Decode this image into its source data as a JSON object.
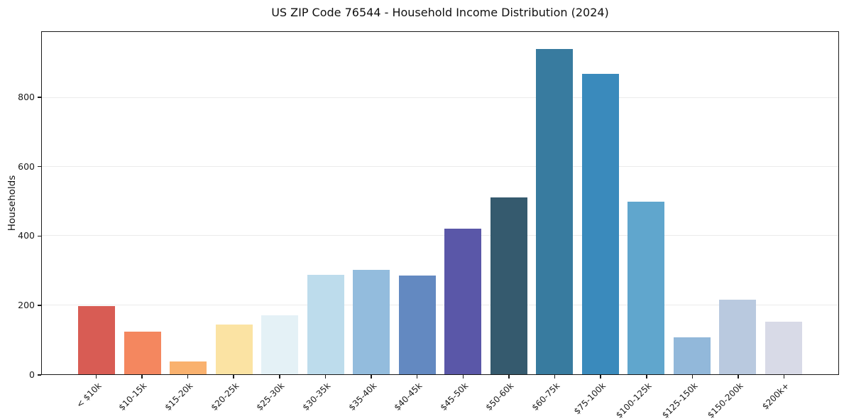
{
  "chart_data": {
    "type": "bar",
    "title": "US ZIP Code 76544 - Household Income Distribution (2024)",
    "xlabel": "",
    "ylabel": "Households",
    "categories": [
      "< $10k",
      "$10-15k",
      "$15-20k",
      "$20-25k",
      "$25-30k",
      "$30-35k",
      "$35-40k",
      "$40-45k",
      "$45-50k",
      "$50-60k",
      "$60-75k",
      "$75-100k",
      "$100-125k",
      "$125-150k",
      "$150-200k",
      "$200k+"
    ],
    "values": [
      197,
      124,
      38,
      144,
      171,
      288,
      301,
      285,
      421,
      511,
      941,
      869,
      500,
      106,
      215,
      153
    ],
    "bar_colors": [
      "#d85c54",
      "#f4875f",
      "#f9b16e",
      "#fbe3a3",
      "#e4f1f6",
      "#bddcec",
      "#93bcdd",
      "#6389c1",
      "#5a57a8",
      "#355a6e",
      "#387b9f",
      "#3a8abc",
      "#60a6cd",
      "#92b8da",
      "#b9c9df",
      "#d8dae7"
    ],
    "yticks": [
      0,
      200,
      400,
      600,
      800
    ],
    "ylim": [
      0,
      990
    ],
    "grid": "horizontal-only",
    "legend": "none",
    "grid_color": "#ebebeb",
    "spine_color": "#1a1a1a",
    "background_color": "#ffffff"
  }
}
